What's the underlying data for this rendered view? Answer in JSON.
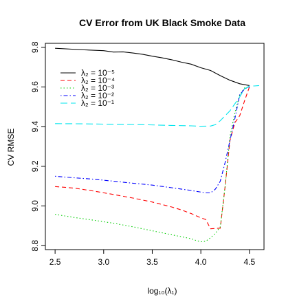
{
  "chart_data": {
    "type": "line",
    "title": "CV Error from UK Black Smoke Data",
    "xlabel": "log₁₀(λ₁)",
    "ylabel": "CV RMSE",
    "xlim": [
      2.4,
      4.65
    ],
    "ylim": [
      8.78,
      9.82
    ],
    "xticks": [
      2.5,
      3.0,
      3.5,
      4.0,
      4.5
    ],
    "xtick_labels": [
      "2.5",
      "3.0",
      "3.5",
      "4.0",
      "4.5"
    ],
    "yticks": [
      8.8,
      9.0,
      9.2,
      9.4,
      9.6,
      9.8
    ],
    "ytick_labels": [
      "8.8",
      "9.0",
      "9.2",
      "9.4",
      "9.6",
      "9.8"
    ],
    "grid": false,
    "legend_position": "top-left",
    "series": [
      {
        "name": "λ₂ = 10⁻⁵",
        "color": "#000000",
        "dash": "solid",
        "x": [
          2.5,
          2.8,
          3.0,
          3.1,
          3.2,
          3.3,
          3.4,
          3.5,
          3.6,
          3.7,
          3.8,
          3.9,
          4.0,
          4.1,
          4.2,
          4.3,
          4.4,
          4.5
        ],
        "y": [
          9.795,
          9.787,
          9.783,
          9.776,
          9.777,
          9.771,
          9.765,
          9.755,
          9.747,
          9.737,
          9.725,
          9.715,
          9.697,
          9.683,
          9.657,
          9.634,
          9.616,
          9.607
        ]
      },
      {
        "name": "λ₂ = 10⁻⁴",
        "color": "#ff0000",
        "dash": "dashed",
        "x": [
          2.5,
          2.7,
          2.9,
          3.1,
          3.3,
          3.5,
          3.7,
          3.8,
          3.9,
          4.0,
          4.05,
          4.1,
          4.2,
          4.25,
          4.3,
          4.35,
          4.4,
          4.45,
          4.5
        ],
        "y": [
          9.098,
          9.09,
          9.075,
          9.058,
          9.04,
          9.02,
          8.995,
          8.98,
          8.962,
          8.94,
          8.932,
          8.885,
          8.888,
          9.1,
          9.33,
          9.42,
          9.455,
          9.53,
          9.6
        ]
      },
      {
        "name": "λ₂ = 10⁻³",
        "color": "#00cd00",
        "dash": "dotted",
        "x": [
          2.5,
          2.7,
          2.9,
          3.1,
          3.3,
          3.5,
          3.7,
          3.9,
          3.95,
          4.0,
          4.05,
          4.1,
          4.15,
          4.2,
          4.25,
          4.3,
          4.35,
          4.4,
          4.45,
          4.5
        ],
        "y": [
          8.958,
          8.942,
          8.928,
          8.913,
          8.895,
          8.875,
          8.855,
          8.835,
          8.826,
          8.82,
          8.822,
          8.84,
          8.862,
          8.895,
          9.1,
          9.35,
          9.47,
          9.56,
          9.595,
          9.6
        ]
      },
      {
        "name": "λ₂ = 10⁻²",
        "color": "#0000ff",
        "dash": "dotdash",
        "x": [
          2.5,
          2.7,
          2.9,
          3.1,
          3.3,
          3.5,
          3.7,
          3.9,
          4.0,
          4.05,
          4.1,
          4.15,
          4.2,
          4.25,
          4.3,
          4.35,
          4.4,
          4.45,
          4.5
        ],
        "y": [
          9.15,
          9.142,
          9.135,
          9.125,
          9.115,
          9.105,
          9.092,
          9.078,
          9.07,
          9.066,
          9.066,
          9.085,
          9.125,
          9.22,
          9.33,
          9.44,
          9.56,
          9.59,
          9.6
        ]
      },
      {
        "name": "λ₂ = 10⁻¹",
        "color": "#00e5ee",
        "dash": "longdash",
        "x": [
          2.5,
          2.8,
          3.1,
          3.4,
          3.7,
          3.9,
          4.0,
          4.1,
          4.15,
          4.2,
          4.3,
          4.4,
          4.45,
          4.5,
          4.55,
          4.6
        ],
        "y": [
          9.415,
          9.414,
          9.412,
          9.41,
          9.406,
          9.404,
          9.402,
          9.403,
          9.41,
          9.43,
          9.48,
          9.55,
          9.59,
          9.605,
          9.605,
          9.607
        ]
      }
    ]
  }
}
